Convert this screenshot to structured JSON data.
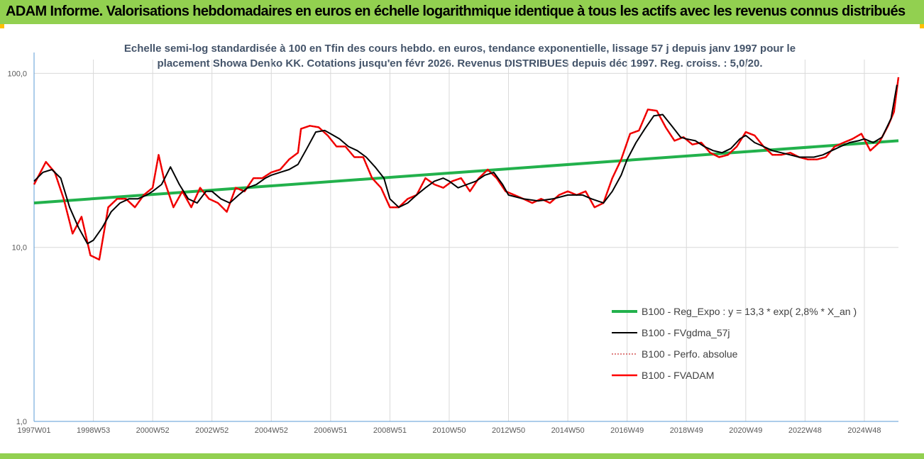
{
  "header": {
    "title": "ADAM Informe. Valorisations hebdomadaires en euros en échelle logarithmique identique à tous les actifs avec les revenus connus distribués"
  },
  "colors": {
    "header_bg": "#92d050",
    "corner": "#ffc000",
    "reg": "#22b14c",
    "fvgdma": "#000000",
    "perfo": "#c00000",
    "fvadam": "#ff0000"
  },
  "chart_data": {
    "type": "line",
    "title_line1": "Echelle semi-log standardisée à 100 en Tfin des cours hebdo. en euros, tendance exponentielle, lissage 57 j depuis janv 1997 pour le",
    "title_line2": "placement Showa Denko KK. Cotations jusqu'en févr 2026. Revenus DISTRIBUES depuis déc 1997. Reg. croiss. : 5,0/20.",
    "y_scale": "log",
    "ylim": [
      1,
      120
    ],
    "y_ticks": [
      "100,0",
      "10,0",
      "1,0"
    ],
    "y_tick_values": [
      100,
      10,
      1
    ],
    "xlim": [
      1997.0,
      2026.15
    ],
    "x_ticks": [
      "1997W01",
      "1998W53",
      "2000W52",
      "2002W52",
      "2004W52",
      "2006W51",
      "2008W51",
      "2010W50",
      "2012W50",
      "2014W50",
      "2016W49",
      "2018W49",
      "2020W49",
      "2022W48",
      "2024W48"
    ],
    "x_tick_values": [
      1997.0,
      1999.0,
      2001.0,
      2003.0,
      2005.0,
      2007.0,
      2009.0,
      2011.0,
      2013.0,
      2015.0,
      2017.0,
      2019.0,
      2021.0,
      2023.0,
      2025.0
    ],
    "legend": {
      "position": "bottom-right",
      "entries": [
        "B100 - Reg_Expo : y = 13,3 * exp( 2,8% *  X_an )",
        "B100 - FVgdma_57j",
        "B100 - Perfo. absolue",
        "B100 - FVADAM"
      ]
    },
    "series": [
      {
        "name": "B100 - Reg_Expo : y = 13,3 * exp( 2,8% *  X_an )",
        "x": [
          1997.0,
          2026.15
        ],
        "values": [
          18.0,
          41.0
        ]
      },
      {
        "name": "B100 - FVgdma_57j",
        "x": [
          1997.0,
          1997.3,
          1997.6,
          1997.9,
          1998.2,
          1998.5,
          1998.8,
          1999.0,
          1999.3,
          1999.6,
          1999.9,
          2000.2,
          2000.5,
          2000.8,
          2001.0,
          2001.3,
          2001.6,
          2001.9,
          2002.2,
          2002.5,
          2002.8,
          2003.0,
          2003.3,
          2003.6,
          2003.9,
          2004.2,
          2004.5,
          2004.8,
          2005.0,
          2005.3,
          2005.6,
          2005.9,
          2006.2,
          2006.5,
          2006.8,
          2007.0,
          2007.3,
          2007.6,
          2007.9,
          2008.2,
          2008.5,
          2008.8,
          2009.0,
          2009.3,
          2009.6,
          2009.9,
          2010.2,
          2010.5,
          2010.8,
          2011.0,
          2011.3,
          2011.6,
          2011.9,
          2012.2,
          2012.5,
          2012.8,
          2013.0,
          2013.5,
          2014.0,
          2014.5,
          2015.0,
          2015.5,
          2015.8,
          2016.2,
          2016.5,
          2016.8,
          2017.0,
          2017.3,
          2017.6,
          2017.9,
          2018.2,
          2018.5,
          2018.8,
          2019.0,
          2019.3,
          2019.6,
          2019.9,
          2020.2,
          2020.5,
          2020.8,
          2021.0,
          2021.3,
          2021.6,
          2021.9,
          2022.2,
          2022.5,
          2022.8,
          2023.0,
          2023.3,
          2023.6,
          2023.9,
          2024.2,
          2024.5,
          2024.8,
          2025.0,
          2025.3,
          2025.6,
          2025.9,
          2026.1
        ],
        "values": [
          24,
          27,
          28,
          25,
          17,
          13,
          10.5,
          11,
          13,
          16,
          18,
          19,
          19,
          20,
          21,
          23,
          29,
          23,
          19,
          18,
          21,
          21,
          19,
          18,
          20,
          22,
          23,
          25,
          26,
          27,
          28,
          30,
          37,
          46,
          47,
          45,
          42,
          38,
          36,
          33,
          29,
          25,
          19,
          17,
          18,
          20,
          22,
          24,
          25,
          24,
          22,
          23,
          24,
          26,
          27,
          23,
          20,
          19,
          18.5,
          19,
          20,
          20,
          19,
          18,
          21,
          26,
          32,
          40,
          48,
          57,
          58,
          50,
          43,
          42,
          41,
          38,
          36,
          35,
          37,
          42,
          44,
          40,
          38,
          36,
          35,
          34,
          33,
          33,
          33,
          34,
          36,
          38,
          40,
          41,
          42,
          40,
          43,
          55,
          86
        ]
      },
      {
        "name": "B100 - Perfo. absolue",
        "x": [
          1997.0,
          1997.4,
          1997.7,
          1998.0,
          1998.3,
          1998.6,
          1998.9,
          1999.2,
          1999.5,
          1999.8,
          2000.1,
          2000.4,
          2000.7,
          2001.0,
          2001.2,
          2001.4,
          2001.7,
          2002.0,
          2002.3,
          2002.6,
          2002.9,
          2003.2,
          2003.5,
          2003.8,
          2004.1,
          2004.4,
          2004.7,
          2005.0,
          2005.3,
          2005.6,
          2005.9,
          2006.0,
          2006.3,
          2006.6,
          2006.9,
          2007.2,
          2007.5,
          2007.8,
          2008.1,
          2008.4,
          2008.7,
          2009.0,
          2009.3,
          2009.6,
          2009.9,
          2010.2,
          2010.5,
          2010.8,
          2011.1,
          2011.4,
          2011.7,
          2012.0,
          2012.3,
          2012.6,
          2012.9,
          2013.2,
          2013.5,
          2013.8,
          2014.1,
          2014.4,
          2014.7,
          2015.0,
          2015.3,
          2015.6,
          2015.9,
          2016.2,
          2016.5,
          2016.8,
          2017.1,
          2017.4,
          2017.7,
          2018.0,
          2018.3,
          2018.6,
          2018.9,
          2019.2,
          2019.5,
          2019.8,
          2020.1,
          2020.4,
          2020.7,
          2021.0,
          2021.3,
          2021.6,
          2021.9,
          2022.2,
          2022.5,
          2022.8,
          2023.1,
          2023.4,
          2023.7,
          2024.0,
          2024.3,
          2024.6,
          2024.9,
          2025.2,
          2025.5,
          2025.8,
          2026.0,
          2026.15
        ],
        "values": [
          23,
          31,
          27,
          19,
          12,
          15,
          9,
          8.5,
          17,
          19,
          19,
          17,
          20,
          22,
          34,
          24,
          17,
          21,
          17,
          22,
          19,
          18,
          16,
          22,
          21,
          25,
          25,
          27,
          28,
          32,
          35,
          48,
          50,
          49,
          44,
          38,
          38,
          33,
          33,
          25,
          22,
          17,
          17,
          19,
          20,
          25,
          23,
          22,
          24,
          25,
          21,
          25,
          28,
          25,
          21,
          20,
          19,
          18,
          19,
          18,
          20,
          21,
          20,
          21,
          17,
          18,
          25,
          32,
          45,
          47,
          62,
          61,
          49,
          41,
          43,
          39,
          40,
          35,
          33,
          34,
          38,
          46,
          44,
          38,
          34,
          34,
          35,
          33,
          32,
          32,
          33,
          38,
          40,
          42,
          45,
          36,
          40,
          50,
          60,
          95
        ]
      },
      {
        "name": "B100 - FVADAM",
        "x": [
          1997.0,
          1997.4,
          1997.7,
          1998.0,
          1998.3,
          1998.6,
          1998.9,
          1999.2,
          1999.5,
          1999.8,
          2000.1,
          2000.4,
          2000.7,
          2001.0,
          2001.2,
          2001.4,
          2001.7,
          2002.0,
          2002.3,
          2002.6,
          2002.9,
          2003.2,
          2003.5,
          2003.8,
          2004.1,
          2004.4,
          2004.7,
          2005.0,
          2005.3,
          2005.6,
          2005.9,
          2006.0,
          2006.3,
          2006.6,
          2006.9,
          2007.2,
          2007.5,
          2007.8,
          2008.1,
          2008.4,
          2008.7,
          2009.0,
          2009.3,
          2009.6,
          2009.9,
          2010.2,
          2010.5,
          2010.8,
          2011.1,
          2011.4,
          2011.7,
          2012.0,
          2012.3,
          2012.6,
          2012.9,
          2013.2,
          2013.5,
          2013.8,
          2014.1,
          2014.4,
          2014.7,
          2015.0,
          2015.3,
          2015.6,
          2015.9,
          2016.2,
          2016.5,
          2016.8,
          2017.1,
          2017.4,
          2017.7,
          2018.0,
          2018.3,
          2018.6,
          2018.9,
          2019.2,
          2019.5,
          2019.8,
          2020.1,
          2020.4,
          2020.7,
          2021.0,
          2021.3,
          2021.6,
          2021.9,
          2022.2,
          2022.5,
          2022.8,
          2023.1,
          2023.4,
          2023.7,
          2024.0,
          2024.3,
          2024.6,
          2024.9,
          2025.2,
          2025.5,
          2025.8,
          2026.0,
          2026.15
        ],
        "values": [
          23,
          31,
          27,
          19,
          12,
          15,
          9,
          8.5,
          17,
          19,
          19,
          17,
          20,
          22,
          34,
          24,
          17,
          21,
          17,
          22,
          19,
          18,
          16,
          22,
          21,
          25,
          25,
          27,
          28,
          32,
          35,
          48,
          50,
          49,
          44,
          38,
          38,
          33,
          33,
          25,
          22,
          17,
          17,
          19,
          20,
          25,
          23,
          22,
          24,
          25,
          21,
          25,
          28,
          25,
          21,
          20,
          19,
          18,
          19,
          18,
          20,
          21,
          20,
          21,
          17,
          18,
          25,
          32,
          45,
          47,
          62,
          61,
          49,
          41,
          43,
          39,
          40,
          35,
          33,
          34,
          38,
          46,
          44,
          38,
          34,
          34,
          35,
          33,
          32,
          32,
          33,
          38,
          40,
          42,
          45,
          36,
          40,
          50,
          60,
          95
        ]
      }
    ]
  }
}
